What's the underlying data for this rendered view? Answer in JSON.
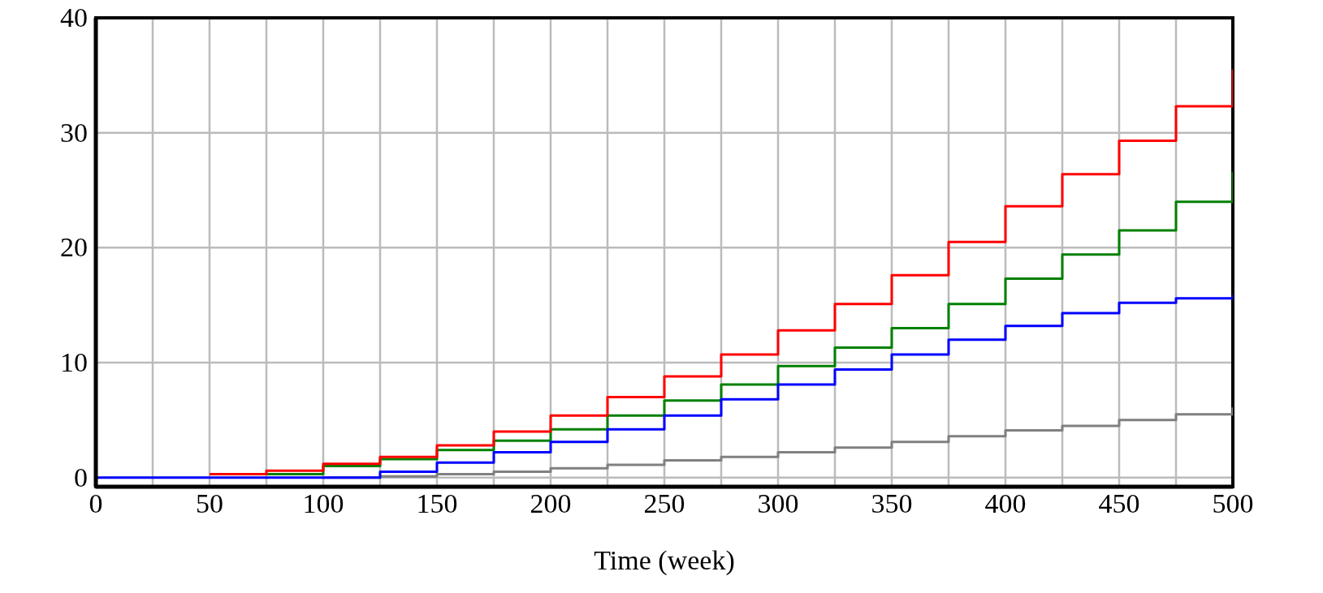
{
  "chart_data": {
    "type": "step",
    "xlabel": "Time (week)",
    "x": [
      0,
      25,
      50,
      75,
      100,
      125,
      150,
      175,
      200,
      225,
      250,
      275,
      300,
      325,
      350,
      375,
      400,
      425,
      450,
      475,
      500
    ],
    "series": [
      {
        "color": "#808080",
        "values": [
          null,
          null,
          null,
          null,
          0,
          0.1,
          0.3,
          0.5,
          0.8,
          1.1,
          1.5,
          1.8,
          2.2,
          2.6,
          3.1,
          3.6,
          4.1,
          4.5,
          5.0,
          5.5,
          6.1
        ]
      },
      {
        "color": "#008000",
        "values": [
          null,
          null,
          null,
          0.3,
          1.0,
          1.6,
          2.4,
          3.2,
          4.2,
          5.4,
          6.7,
          8.1,
          9.7,
          11.3,
          13.0,
          15.1,
          17.3,
          19.4,
          21.5,
          24.0,
          26.6
        ]
      },
      {
        "color": "#ff0000",
        "values": [
          null,
          null,
          0.3,
          0.6,
          1.2,
          1.8,
          2.8,
          4.0,
          5.4,
          7.0,
          8.8,
          10.7,
          12.8,
          15.1,
          17.6,
          20.5,
          23.6,
          26.4,
          29.3,
          32.3,
          35.5
        ]
      },
      {
        "color": "#0000ff",
        "values": [
          0,
          0,
          0,
          0,
          0,
          0.5,
          1.3,
          2.2,
          3.1,
          4.2,
          5.4,
          6.8,
          8.1,
          9.4,
          10.7,
          12.0,
          13.2,
          14.3,
          15.2,
          15.6,
          15.9
        ]
      }
    ],
    "xlim": [
      0,
      500
    ],
    "xticks": [
      0,
      {
        "value": 25,
        "label": null
      },
      50,
      {
        "value": 75,
        "label": null
      },
      100,
      {
        "value": 125,
        "label": null
      },
      150,
      {
        "value": 175,
        "label": null
      },
      200,
      {
        "value": 225,
        "label": null
      },
      250,
      {
        "value": 275,
        "label": null
      },
      300,
      {
        "value": 325,
        "label": null
      },
      350,
      {
        "value": 375,
        "label": null
      },
      400,
      {
        "value": 425,
        "label": null
      },
      450,
      {
        "value": 475,
        "label": null
      },
      500
    ],
    "ylim": [
      -0.8,
      40
    ],
    "yticks": [
      0,
      10,
      20,
      30,
      40
    ],
    "grid": true
  }
}
